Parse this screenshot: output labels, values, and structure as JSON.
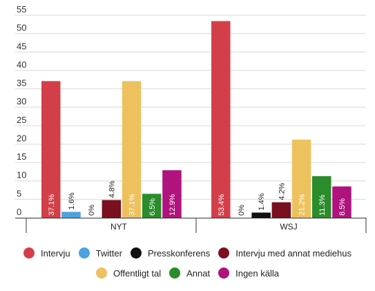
{
  "chart_data": {
    "type": "bar",
    "categories": [
      "NYT",
      "WSJ"
    ],
    "y_ticks": [
      "0",
      "5",
      "10",
      "15",
      "20",
      "25",
      "30",
      "35",
      "40",
      "45",
      "50",
      "55"
    ],
    "ylim": [
      0,
      55
    ],
    "grid": true,
    "legend_position": "bottom",
    "series": [
      {
        "name": "Intervju",
        "color": "#d33f49",
        "values": [
          37.1,
          53.4
        ],
        "labels": [
          "37.1%",
          "53.4%"
        ]
      },
      {
        "name": "Twitter",
        "color": "#4aa3df",
        "values": [
          1.6,
          0
        ],
        "labels": [
          "1.6%",
          "0%"
        ]
      },
      {
        "name": "Presskonferens",
        "color": "#111111",
        "values": [
          0,
          1.4
        ],
        "labels": [
          "0%",
          "1.4%"
        ]
      },
      {
        "name": "Intervju med annat mediehus",
        "color": "#7a0f1f",
        "values": [
          4.8,
          4.2
        ],
        "labels": [
          "4.8%",
          "4.2%"
        ]
      },
      {
        "name": "Offentligt tal",
        "color": "#edc25e",
        "values": [
          37.1,
          21.2
        ],
        "labels": [
          "37.1%",
          "21.2%"
        ]
      },
      {
        "name": "Annat",
        "color": "#2a8c2a",
        "values": [
          6.5,
          11.3
        ],
        "labels": [
          "6.5%",
          "11.3%"
        ]
      },
      {
        "name": "Ingen källa",
        "color": "#b0127e",
        "values": [
          12.9,
          8.5
        ],
        "labels": [
          "12.9%",
          "8.5%"
        ]
      }
    ]
  }
}
